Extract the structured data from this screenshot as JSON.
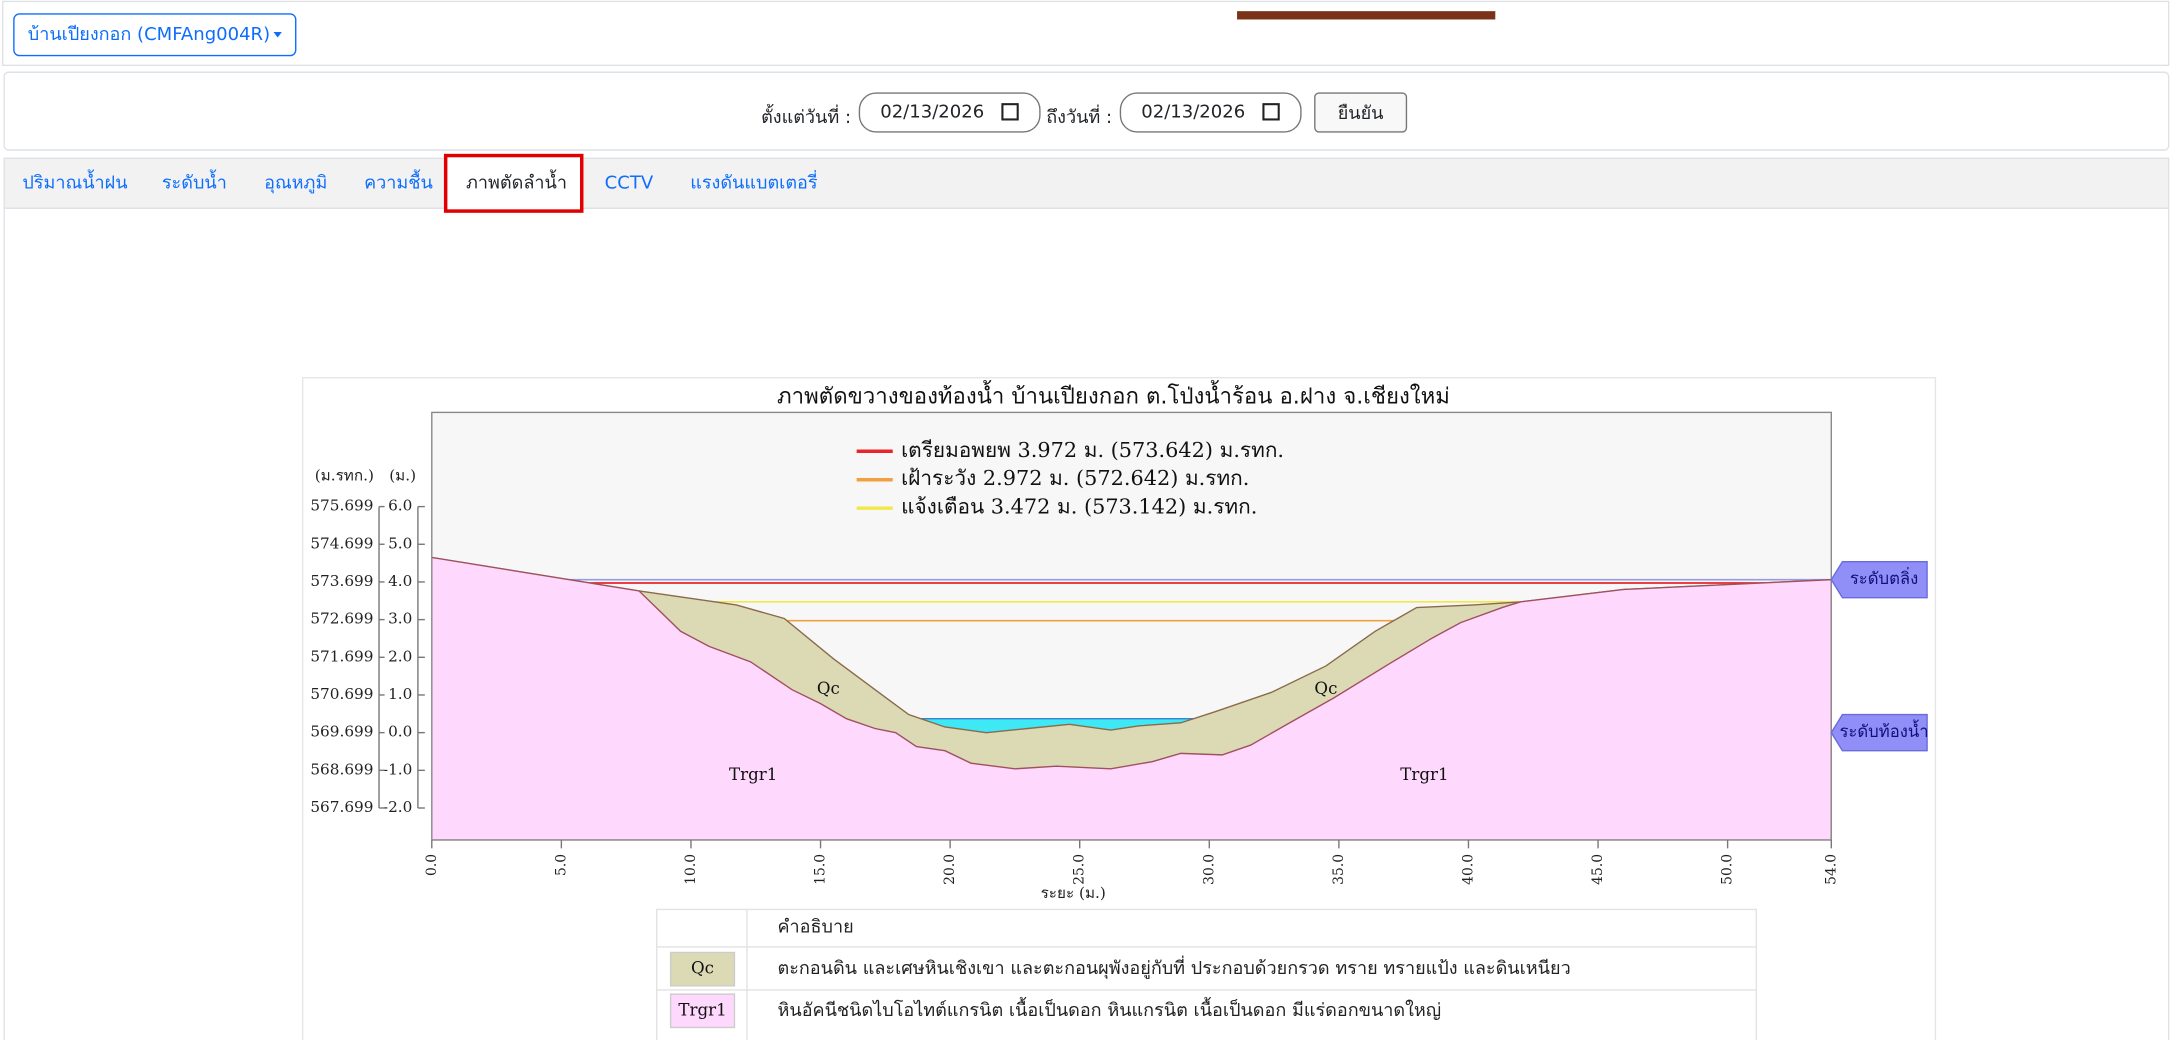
{
  "header": {
    "station_dropdown": "บ้านเปียงกอก (CMFAng004R)"
  },
  "filter": {
    "from_label": "ตั้งแต่วันที่ :",
    "from_date": "02/13/2026",
    "to_label": "ถึงวันที่ :",
    "to_date": "02/13/2026",
    "submit": "ยืนยัน"
  },
  "tabs": [
    "ปริมาณน้ำฝน",
    "ระดับน้ำ",
    "อุณหภูมิ",
    "ความชื้น",
    "ภาพตัดลำน้ำ",
    "CCTV",
    "แรงดันแบตเตอรี่"
  ],
  "chart_data": {
    "type": "cross-section",
    "title": "ภาพตัดขวางของท้องน้ำ บ้านเปียงกอก ต.โป่งน้ำร้อน อ.ฝาง จ.เชียงใหม่",
    "xlabel": "ระยะ (ม.)",
    "ylabel": "(ม.)",
    "y2label": "(ม.รทก.)",
    "xlim": [
      0,
      54
    ],
    "xticks": [
      {
        "value": 0,
        "label": "0.0"
      },
      {
        "value": 5,
        "label": "5.0"
      },
      {
        "value": 10,
        "label": "10.0"
      },
      {
        "value": 15,
        "label": "15.0"
      },
      {
        "value": 20,
        "label": "20.0"
      },
      {
        "value": 25,
        "label": "25.0"
      },
      {
        "value": 30,
        "label": "30.0"
      },
      {
        "value": 35,
        "label": "35.0"
      },
      {
        "value": 40,
        "label": "40.0"
      },
      {
        "value": 45,
        "label": "45.0"
      },
      {
        "value": 50,
        "label": "50.0"
      },
      {
        "value": 54,
        "label": "54.0"
      }
    ],
    "ylim": [
      -2.85,
      8.5
    ],
    "yticks": [
      {
        "value": 6,
        "label": "6.0"
      },
      {
        "value": 5,
        "label": "5.0"
      },
      {
        "value": 4,
        "label": "4.0"
      },
      {
        "value": 3,
        "label": "3.0"
      },
      {
        "value": 2,
        "label": "2.0"
      },
      {
        "value": 1,
        "label": "1.0"
      },
      {
        "value": 0,
        "label": "0.0"
      },
      {
        "value": -1,
        "label": "-1.0"
      },
      {
        "value": -2,
        "label": "-2.0"
      }
    ],
    "y2lim": [
      566.849,
      578.199
    ],
    "y2ticks": [
      575.699,
      574.699,
      573.699,
      572.699,
      571.699,
      570.699,
      569.699,
      568.699,
      567.699
    ],
    "thresholds": [
      {
        "label": "เตรียมอพยพ 3.972 ม. (573.642) ม.รทก.",
        "value": 3.972,
        "color": "#e8262a"
      },
      {
        "label": "เฝ้าระวัง 2.972 ม. (572.642) ม.รทก.",
        "value": 2.972,
        "color": "#f0a040"
      },
      {
        "label": "แจ้งเตือน 3.472 ม. (573.142) ม.รทก.",
        "value": 3.472,
        "color": "#f2e84a"
      }
    ],
    "markers": [
      {
        "label": "ระดับตลิ่ง",
        "value": 4.06
      },
      {
        "label": "ระดับท้องน้ำ",
        "value": 0
      }
    ],
    "water_level": 0.37,
    "layers": [
      {
        "name": "Qc",
        "color": "#dcdab4",
        "x": [
          0,
          8.0,
          11.75,
          13.6,
          15.5,
          18.4,
          19.8,
          21.4,
          23.0,
          24.6,
          26.2,
          27.3,
          28.9,
          30.2,
          32.4,
          34.5,
          36.4,
          38.0,
          40.2,
          42.0,
          46.0,
          54
        ],
        "values": [
          4.65,
          3.76,
          3.39,
          3.03,
          1.96,
          0.48,
          0.15,
          0,
          0.11,
          0.22,
          0.07,
          0.18,
          0.26,
          0.55,
          1.07,
          1.77,
          2.69,
          3.32,
          3.39,
          3.47,
          3.8,
          4.06
        ]
      },
      {
        "name": "Trgr1",
        "color": "#ffd9fd",
        "x": [
          0,
          8.0,
          9.6,
          10.7,
          12.3,
          13.9,
          15.0,
          16.0,
          17.1,
          17.9,
          18.7,
          19.8,
          20.8,
          22.5,
          24.1,
          26.2,
          27.8,
          28.9,
          30.5,
          31.6,
          33.2,
          34.8,
          37.0,
          38.6,
          39.7,
          41.3,
          42.0,
          46.0,
          54
        ],
        "values": [
          4.65,
          3.76,
          2.69,
          2.29,
          1.88,
          1.14,
          0.77,
          0.37,
          0.11,
          0,
          -0.37,
          -0.48,
          -0.81,
          -0.96,
          -0.89,
          -0.96,
          -0.77,
          -0.55,
          -0.59,
          -0.33,
          0.3,
          0.92,
          1.85,
          2.51,
          2.92,
          3.32,
          3.47,
          3.8,
          4.06
        ]
      }
    ],
    "annotations": [
      {
        "text": "Qc",
        "x": 15.3,
        "y": 1.14
      },
      {
        "text": "Qc",
        "x": 34.5,
        "y": 1.14
      },
      {
        "text": "Trgr1",
        "x": 12.4,
        "y": -1.14
      },
      {
        "text": "Trgr1",
        "x": 38.3,
        "y": -1.14
      }
    ]
  },
  "legend_table": {
    "header": "คำอธิบาย",
    "rows": [
      {
        "code": "Qc",
        "description": "ตะกอนดิน และเศษหินเชิงเขา และตะกอนผุพังอยู่กับที่ ประกอบด้วยกรวด ทราย ทรายแป้ง และดินเหนียว"
      },
      {
        "code": "Trgr1",
        "description": "หินอัคนีชนิดไบโอไทต์แกรนิต เนื้อเป็นดอก หินแกรนิต เนื้อเป็นดอก มีแร่ดอกขนาดใหญ่"
      }
    ]
  }
}
